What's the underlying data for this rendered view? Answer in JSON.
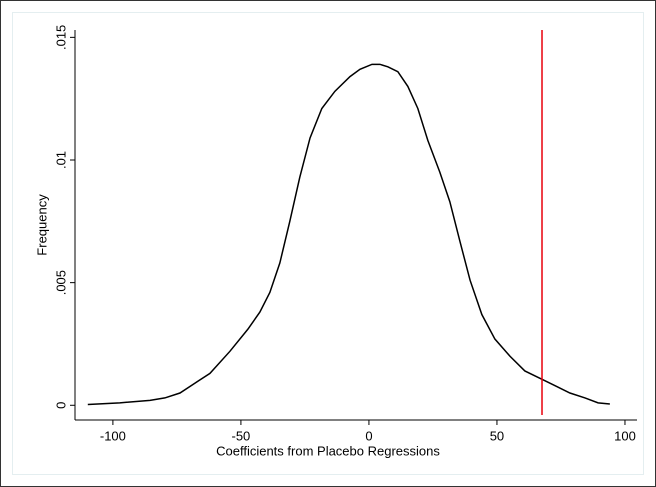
{
  "chart_data": {
    "type": "line",
    "x_label": "Coefficients from Placebo Regressions",
    "y_label": "Frequency",
    "x": [
      -109.8,
      -97.3,
      -85.5,
      -79.7,
      -73.8,
      -68,
      -62.1,
      -54.3,
      -47.3,
      -42.6,
      -38.7,
      -34.8,
      -30.9,
      -27,
      -23,
      -18.4,
      -13.3,
      -7.4,
      -3.5,
      1.2,
      4.3,
      7.4,
      11.3,
      15.2,
      19.1,
      23,
      27.7,
      31.6,
      35.5,
      39.5,
      44.1,
      49.2,
      55.1,
      60.9,
      66.8,
      72.7,
      78.5,
      84.4,
      89.5,
      94.1
    ],
    "values": [
      3e-05,
      0.0001,
      0.0002,
      0.0003,
      0.0005,
      0.0009,
      0.0013,
      0.0022,
      0.0031,
      0.0038,
      0.0046,
      0.0058,
      0.0075,
      0.0093,
      0.0109,
      0.0121,
      0.0128,
      0.0134,
      0.0137,
      0.0139,
      0.0139,
      0.0138,
      0.0136,
      0.013,
      0.0121,
      0.0108,
      0.0095,
      0.0083,
      0.0067,
      0.0051,
      0.0037,
      0.0027,
      0.002,
      0.0014,
      0.0011,
      0.0008,
      0.0005,
      0.0003,
      0.0001,
      5e-05
    ],
    "color": "#000000",
    "vline": {
      "x": 67.6,
      "color": "#e8000b"
    },
    "xlim": [
      -114.8,
      104.7
    ],
    "ylim": [
      -0.0006,
      0.0153
    ],
    "xticks": [
      -100,
      -50,
      0,
      50,
      100
    ],
    "yticks": [
      0,
      {
        "value": 0.005,
        "label": ".005"
      },
      {
        "value": 0.01,
        "label": ".01"
      },
      {
        "value": 0.015,
        "label": ".015"
      }
    ]
  }
}
